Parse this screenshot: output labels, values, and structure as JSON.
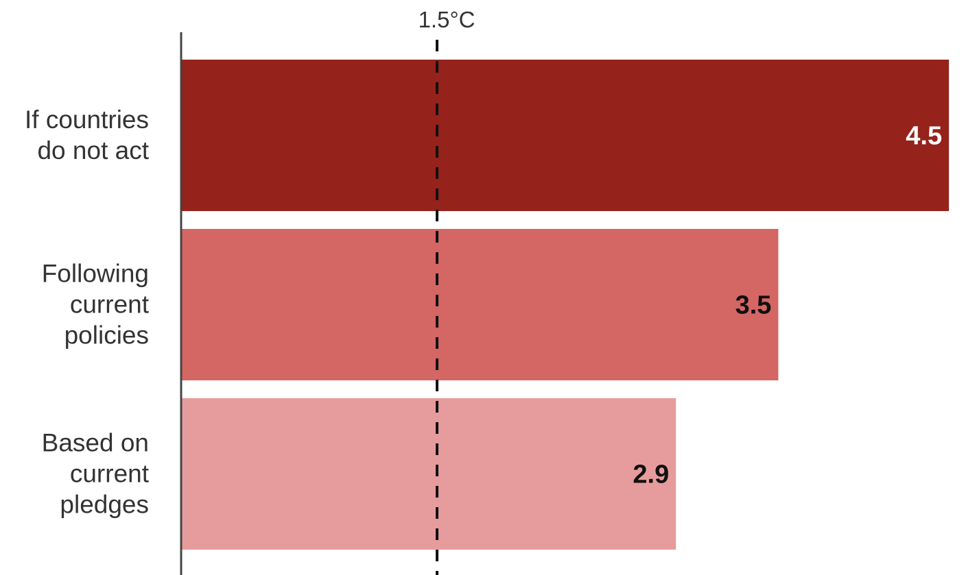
{
  "chart_data": {
    "type": "bar",
    "orientation": "horizontal",
    "categories": [
      [
        "If countries",
        "do not act"
      ],
      [
        "Following",
        "current",
        "policies"
      ],
      [
        "Based on",
        "current",
        "pledges"
      ]
    ],
    "values": [
      4.5,
      3.5,
      2.9
    ],
    "value_labels": [
      "4.5",
      "3.5",
      "2.9"
    ],
    "bar_colors": [
      "#96221c",
      "#d46664",
      "#e69c9c"
    ],
    "value_label_colors": [
      "#ffffff",
      "#111111",
      "#111111"
    ],
    "xlim": [
      0,
      4.6
    ],
    "reference_line": {
      "value": 1.5,
      "label": "1.5°C",
      "style": "dashed",
      "color": "#111111"
    },
    "grid": false,
    "legend": "none"
  }
}
